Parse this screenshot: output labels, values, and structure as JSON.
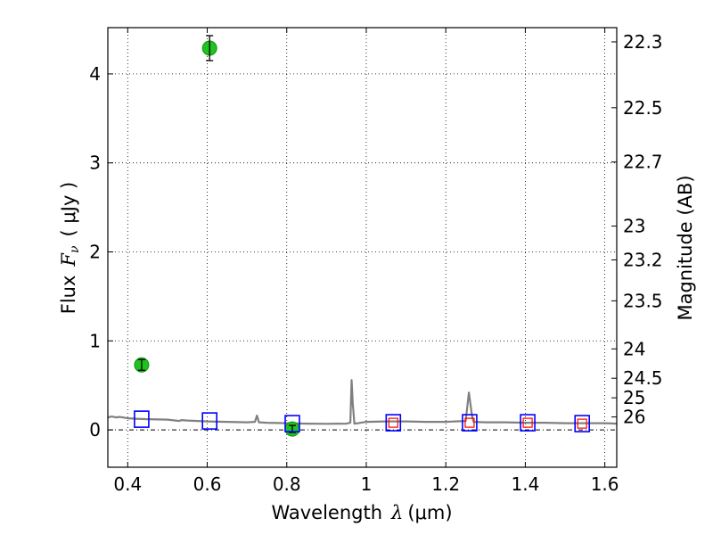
{
  "chart_data": {
    "type": "scatter",
    "xlabel_text": "Wavelength",
    "xlabel_symbol": "λ",
    "xlabel_unit": "(μm)",
    "ylabel_text": "Flux",
    "ylabel_symbol": "F",
    "ylabel_subscript": "ν",
    "ylabel_unit": "( μJy )",
    "y2label": "Magnitude (AB)",
    "xlim": [
      0.35,
      1.63
    ],
    "ylim": [
      -0.42,
      4.52
    ],
    "grid": true,
    "x_ticks": [
      {
        "value": 0.4,
        "label": "0.4"
      },
      {
        "value": 0.6,
        "label": "0.6"
      },
      {
        "value": 0.8,
        "label": "0.8"
      },
      {
        "value": 1.0,
        "label": "1"
      },
      {
        "value": 1.2,
        "label": "1.2"
      },
      {
        "value": 1.4,
        "label": "1.4"
      },
      {
        "value": 1.6,
        "label": "1.6"
      }
    ],
    "y_ticks": [
      {
        "value": 0,
        "label": "0"
      },
      {
        "value": 1,
        "label": "1"
      },
      {
        "value": 2,
        "label": "2"
      },
      {
        "value": 3,
        "label": "3"
      },
      {
        "value": 4,
        "label": "4"
      }
    ],
    "mag_ticks": [
      {
        "flux": 4.36,
        "label": "22.3"
      },
      {
        "flux": 3.62,
        "label": "22.5"
      },
      {
        "flux": 3.01,
        "label": "22.7"
      },
      {
        "flux": 2.29,
        "label": "23"
      },
      {
        "flux": 1.91,
        "label": "23.2"
      },
      {
        "flux": 1.45,
        "label": "23.5"
      },
      {
        "flux": 0.91,
        "label": "24"
      },
      {
        "flux": 0.58,
        "label": "24.5"
      },
      {
        "flux": 0.36,
        "label": "25"
      },
      {
        "flux": 0.145,
        "label": "26"
      }
    ],
    "series": [
      {
        "name": "observed photometry",
        "marker": "circle",
        "color": "#1fc21f",
        "points": [
          {
            "x": 0.435,
            "y": 0.73,
            "err": 0.06
          },
          {
            "x": 0.606,
            "y": 4.29,
            "err": 0.14
          },
          {
            "x": 0.814,
            "y": 0.01,
            "err": 0.04
          }
        ]
      },
      {
        "name": "model photometry",
        "marker": "square",
        "color": "#0000ff",
        "points": [
          {
            "x": 0.435,
            "y": 0.12
          },
          {
            "x": 0.606,
            "y": 0.1
          },
          {
            "x": 0.814,
            "y": 0.07
          },
          {
            "x": 1.068,
            "y": 0.08
          },
          {
            "x": 1.26,
            "y": 0.08
          },
          {
            "x": 1.406,
            "y": 0.08
          },
          {
            "x": 1.543,
            "y": 0.07
          }
        ]
      },
      {
        "name": "upper-limit photometry",
        "marker": "small-square",
        "color": "#ff0000",
        "points": [
          {
            "x": 1.068,
            "y": 0.08
          },
          {
            "x": 1.26,
            "y": 0.08
          },
          {
            "x": 1.406,
            "y": 0.08
          },
          {
            "x": 1.543,
            "y": 0.07
          }
        ]
      },
      {
        "name": "model spectrum",
        "marker": "line",
        "color": "#808080",
        "points": [
          [
            0.35,
            0.14
          ],
          [
            0.36,
            0.15
          ],
          [
            0.37,
            0.14
          ],
          [
            0.38,
            0.145
          ],
          [
            0.4,
            0.13
          ],
          [
            0.42,
            0.125
          ],
          [
            0.45,
            0.12
          ],
          [
            0.5,
            0.115
          ],
          [
            0.53,
            0.1
          ],
          [
            0.535,
            0.11
          ],
          [
            0.55,
            0.105
          ],
          [
            0.6,
            0.095
          ],
          [
            0.65,
            0.09
          ],
          [
            0.7,
            0.085
          ],
          [
            0.72,
            0.09
          ],
          [
            0.725,
            0.16
          ],
          [
            0.73,
            0.085
          ],
          [
            0.75,
            0.08
          ],
          [
            0.8,
            0.075
          ],
          [
            0.85,
            0.07
          ],
          [
            0.9,
            0.068
          ],
          [
            0.95,
            0.07
          ],
          [
            0.96,
            0.08
          ],
          [
            0.963,
            0.56
          ],
          [
            0.966,
            0.3
          ],
          [
            0.97,
            0.07
          ],
          [
            0.98,
            0.075
          ],
          [
            1.0,
            0.09
          ],
          [
            1.05,
            0.095
          ],
          [
            1.1,
            0.095
          ],
          [
            1.15,
            0.09
          ],
          [
            1.2,
            0.09
          ],
          [
            1.25,
            0.1
          ],
          [
            1.258,
            0.42
          ],
          [
            1.266,
            0.16
          ],
          [
            1.27,
            0.09
          ],
          [
            1.3,
            0.085
          ],
          [
            1.35,
            0.085
          ],
          [
            1.4,
            0.08
          ],
          [
            1.45,
            0.08
          ],
          [
            1.5,
            0.075
          ],
          [
            1.55,
            0.075
          ],
          [
            1.6,
            0.075
          ],
          [
            1.63,
            0.07
          ]
        ]
      }
    ]
  }
}
